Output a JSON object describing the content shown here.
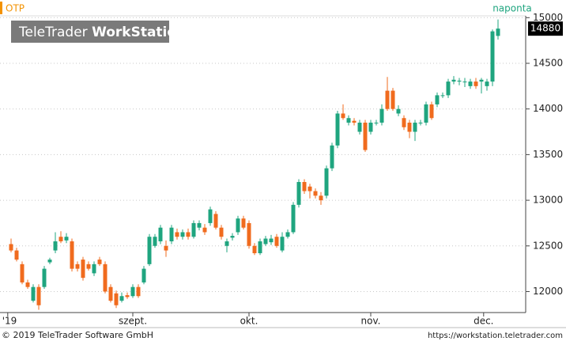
{
  "chart_data": {
    "type": "candlestick",
    "symbol": "OTP",
    "interval": "naponta",
    "watermark": {
      "part1": "TeleTrader",
      "part2": "WorkStation"
    },
    "last_price": 14880,
    "footer_left": "© 2019 TeleTrader Software GmbH",
    "footer_right": "https://workstation.teletrader.com",
    "up_color": "#1fa57f",
    "down_color": "#f06b1e",
    "grid": true,
    "open": [
      12520,
      12450,
      12300,
      12100,
      11900,
      12050,
      12050,
      12320,
      12450,
      12600,
      12560,
      12550,
      12300,
      12350,
      12300,
      12200,
      12350,
      12300,
      12050,
      11980,
      11900,
      11960,
      11950,
      12050,
      12100,
      12300,
      12500,
      12550,
      12500,
      12550,
      12650,
      12600,
      12650,
      12600,
      12700,
      12700,
      12750,
      12850,
      12700,
      12500,
      12590,
      12650,
      12800,
      12750,
      12500,
      12420,
      12520,
      12540,
      12600,
      12450,
      12600,
      12650,
      12950,
      13200,
      13150,
      13100,
      13050,
      13050,
      13350,
      13600,
      13950,
      13850,
      13870,
      13750,
      13850,
      13750,
      13850,
      13850,
      14200,
      14200,
      13950,
      13900,
      13850,
      13750,
      13850,
      13850,
      14050,
      14050,
      14150,
      14150,
      14300,
      14300,
      14300,
      14250,
      14300,
      14300,
      14250,
      14300,
      14800
    ],
    "high": [
      12580,
      12480,
      12330,
      12130,
      12080,
      12080,
      12280,
      12370,
      12650,
      12660,
      12640,
      12580,
      12330,
      12380,
      12330,
      12330,
      12380,
      12330,
      12080,
      12010,
      11990,
      11990,
      12080,
      12080,
      12280,
      12630,
      12630,
      12730,
      12560,
      12730,
      12690,
      12680,
      12690,
      12780,
      12780,
      12740,
      12930,
      12880,
      12730,
      12580,
      12640,
      12830,
      12830,
      12780,
      12530,
      12580,
      12610,
      12620,
      12630,
      12650,
      12680,
      12980,
      13230,
      13230,
      13180,
      13130,
      13090,
      13380,
      13630,
      13980,
      14050,
      13930,
      13900,
      13880,
      13880,
      13880,
      13880,
      14050,
      14350,
      14230,
      14040,
      13930,
      13880,
      13880,
      13880,
      14080,
      14080,
      14180,
      14180,
      14330,
      14360,
      14340,
      14340,
      14330,
      14340,
      14340,
      14330,
      14870,
      14980
    ],
    "low": [
      12430,
      12330,
      12080,
      12030,
      11880,
      11800,
      12030,
      12300,
      12420,
      12530,
      12530,
      12220,
      12220,
      12120,
      12230,
      12170,
      12280,
      11980,
      11880,
      11820,
      11880,
      11920,
      11930,
      11930,
      12080,
      12280,
      12480,
      12520,
      12380,
      12520,
      12570,
      12570,
      12570,
      12580,
      12670,
      12620,
      12720,
      12680,
      12570,
      12430,
      12560,
      12620,
      12680,
      12470,
      12400,
      12400,
      12500,
      12510,
      12480,
      12430,
      12580,
      12630,
      12920,
      13070,
      13020,
      13020,
      12950,
      13020,
      13320,
      13570,
      13880,
      13820,
      13820,
      13720,
      13530,
      13720,
      13820,
      13820,
      13980,
      13980,
      13920,
      13770,
      13680,
      13650,
      13820,
      13820,
      13880,
      14020,
      14120,
      14120,
      14270,
      14260,
      14240,
      14220,
      14220,
      14170,
      14200,
      14250,
      14760
    ],
    "close": [
      12450,
      12350,
      12100,
      12050,
      12050,
      11850,
      12250,
      12350,
      12550,
      12550,
      12600,
      12250,
      12250,
      12150,
      12250,
      12300,
      12300,
      12000,
      11900,
      11850,
      11950,
      11940,
      12050,
      11950,
      12250,
      12600,
      12600,
      12700,
      12450,
      12700,
      12600,
      12650,
      12600,
      12750,
      12750,
      12650,
      12900,
      12700,
      12600,
      12550,
      12610,
      12800,
      12700,
      12500,
      12420,
      12550,
      12580,
      12580,
      12500,
      12600,
      12650,
      12950,
      13200,
      13100,
      13100,
      13050,
      13000,
      13350,
      13600,
      13950,
      13900,
      13900,
      13850,
      13850,
      13550,
      13850,
      13850,
      14000,
      14000,
      14000,
      14000,
      13800,
      13750,
      13850,
      13850,
      14050,
      13900,
      14150,
      14150,
      14300,
      14320,
      14310,
      14300,
      14300,
      14250,
      14320,
      14300,
      14850,
      14880
    ],
    "yticks": [
      12000,
      12500,
      13000,
      13500,
      14000,
      14500,
      15000
    ],
    "ylim": [
      11770,
      15020
    ],
    "xticks": [
      {
        "value": -0.6,
        "label": "'19"
      },
      {
        "value": 22,
        "label": "szept."
      },
      {
        "value": 43,
        "label": "okt."
      },
      {
        "value": 65,
        "label": "nov."
      },
      {
        "value": 85.4,
        "label": "dec."
      }
    ]
  }
}
